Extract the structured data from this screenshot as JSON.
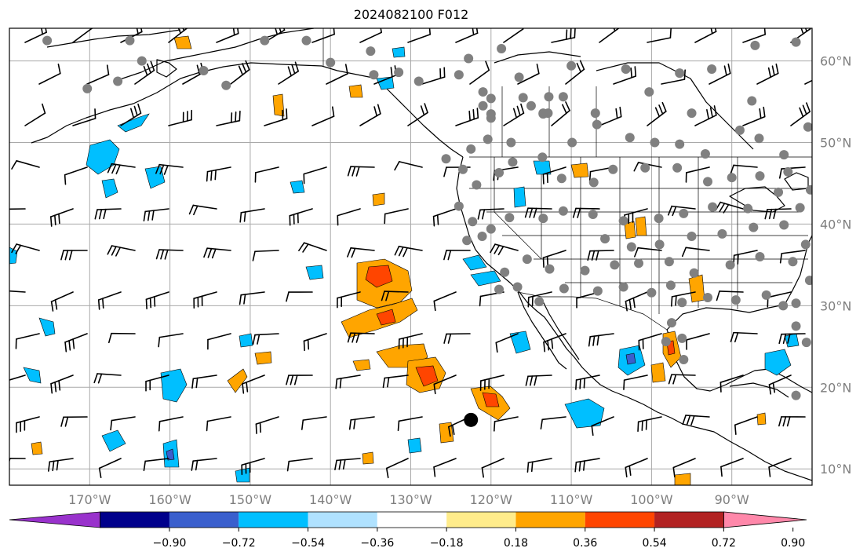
{
  "title": "2024082100 F012",
  "map": {
    "projection": "PlateCarree",
    "lon_range": [
      -180,
      -80
    ],
    "lat_range": [
      8,
      64
    ],
    "grid": true,
    "lat_ticks": [
      {
        "lat": 60,
        "label": "60°N"
      },
      {
        "lat": 50,
        "label": "50°N"
      },
      {
        "lat": 40,
        "label": "40°N"
      },
      {
        "lat": 30,
        "label": "30°N"
      },
      {
        "lat": 20,
        "label": "20°N"
      },
      {
        "lat": 10,
        "label": "10°N"
      }
    ],
    "lon_ticks": [
      {
        "lon": -170,
        "label": "170°W"
      },
      {
        "lon": -160,
        "label": "160°W"
      },
      {
        "lon": -150,
        "label": "150°W"
      },
      {
        "lon": -140,
        "label": "140°W"
      },
      {
        "lon": -130,
        "label": "130°W"
      },
      {
        "lon": -120,
        "label": "120°W"
      },
      {
        "lon": -110,
        "label": "110°W"
      },
      {
        "lon": -100,
        "label": "100°W"
      },
      {
        "lon": -90,
        "label": "90°W"
      }
    ],
    "station_marker": {
      "lon": -122.5,
      "lat": 16,
      "color": "#000000"
    },
    "observation_points_color": "#808080",
    "observation_points": [
      [
        -175.3,
        62.5
      ],
      [
        -165,
        62.5
      ],
      [
        -163.5,
        60
      ],
      [
        -166.5,
        57.5
      ],
      [
        -170.3,
        56.6
      ],
      [
        -155.8,
        58.8
      ],
      [
        -153,
        57
      ],
      [
        -148.2,
        62.5
      ],
      [
        -143,
        62.5
      ],
      [
        -140,
        59.8
      ],
      [
        -135,
        61.2
      ],
      [
        -131.5,
        58.6
      ],
      [
        -129,
        57.5
      ],
      [
        -124,
        58.3
      ],
      [
        -122.8,
        60.3
      ],
      [
        -120,
        55.4
      ],
      [
        -120,
        53.5
      ],
      [
        -115,
        54.5
      ],
      [
        -112.9,
        53.6
      ],
      [
        -113.5,
        53.6
      ],
      [
        -111,
        55.6
      ],
      [
        -116.5,
        58
      ],
      [
        -112.8,
        55.6
      ],
      [
        -110,
        59.4
      ],
      [
        -107,
        53.6
      ],
      [
        -103.2,
        59
      ],
      [
        -100.3,
        56.2
      ],
      [
        -96.5,
        58.5
      ],
      [
        -95,
        53.6
      ],
      [
        -92.5,
        59
      ],
      [
        -87.5,
        55.1
      ],
      [
        -87.1,
        61.9
      ],
      [
        -82,
        62.3
      ],
      [
        -80.5,
        51.9
      ],
      [
        -83.5,
        48.5
      ],
      [
        -86.6,
        50.5
      ],
      [
        -89,
        51.5
      ],
      [
        -93.3,
        48.6
      ],
      [
        -96.5,
        49.8
      ],
      [
        -99.6,
        50
      ],
      [
        -102.7,
        50.6
      ],
      [
        -106.8,
        52.2
      ],
      [
        -109.9,
        50
      ],
      [
        -113.5,
        53.5
      ],
      [
        -117.5,
        50
      ],
      [
        -120.4,
        50.4
      ],
      [
        -122.5,
        49.2
      ],
      [
        -125.6,
        48
      ],
      [
        -123.5,
        46.7
      ],
      [
        -121.8,
        44.8
      ],
      [
        -119,
        46.3
      ],
      [
        -117.3,
        47.6
      ],
      [
        -113.6,
        48.2
      ],
      [
        -111.2,
        45.6
      ],
      [
        -107.2,
        45.1
      ],
      [
        -104.8,
        46.7
      ],
      [
        -100.8,
        46.9
      ],
      [
        -96.8,
        46.9
      ],
      [
        -93,
        45.2
      ],
      [
        -90,
        45.7
      ],
      [
        -86.5,
        45.9
      ],
      [
        -83,
        46.4
      ],
      [
        -80.2,
        44.2
      ],
      [
        -124,
        42.2
      ],
      [
        -122.3,
        40.3
      ],
      [
        -120,
        39.4
      ],
      [
        -117.7,
        40.8
      ],
      [
        -113.5,
        40.7
      ],
      [
        -111,
        41.6
      ],
      [
        -107.3,
        41.2
      ],
      [
        -103.5,
        40.4
      ],
      [
        -99.1,
        40.7
      ],
      [
        -96,
        41.3
      ],
      [
        -92.4,
        42.1
      ],
      [
        -88,
        41.9
      ],
      [
        -84.2,
        43.9
      ],
      [
        -81.5,
        42
      ],
      [
        -123,
        38
      ],
      [
        -121.1,
        38.5
      ],
      [
        -118.3,
        34.1
      ],
      [
        -115.5,
        35.7
      ],
      [
        -112.7,
        34.5
      ],
      [
        -108.3,
        34.3
      ],
      [
        -104.6,
        35
      ],
      [
        -101.6,
        35.2
      ],
      [
        -97.8,
        35.4
      ],
      [
        -94.7,
        34
      ],
      [
        -90.2,
        35
      ],
      [
        -86.5,
        36
      ],
      [
        -82.4,
        35.4
      ],
      [
        -80.8,
        37.5
      ],
      [
        -83.5,
        39.9
      ],
      [
        -87.3,
        39.6
      ],
      [
        -91.2,
        38.8
      ],
      [
        -95,
        38.5
      ],
      [
        -99,
        37.5
      ],
      [
        -102.5,
        37.2
      ],
      [
        -105.8,
        38.2
      ],
      [
        -119,
        32
      ],
      [
        -116.7,
        32.3
      ],
      [
        -114,
        30.5
      ],
      [
        -110.9,
        32.1
      ],
      [
        -106.7,
        31.8
      ],
      [
        -103.5,
        32.3
      ],
      [
        -100,
        31.6
      ],
      [
        -97.6,
        32.5
      ],
      [
        -96.2,
        30.4
      ],
      [
        -93,
        31
      ],
      [
        -89.5,
        30.7
      ],
      [
        -85.7,
        31.3
      ],
      [
        -82,
        30.3
      ],
      [
        -80.3,
        33.1
      ],
      [
        -83.6,
        30
      ],
      [
        -82,
        27.5
      ],
      [
        -80.7,
        25.5
      ],
      [
        -97.5,
        27.9
      ],
      [
        -96.2,
        26
      ],
      [
        -96,
        23.4
      ],
      [
        -98.2,
        25.6
      ],
      [
        -82,
        19
      ],
      [
        -120,
        53
      ],
      [
        -134.6,
        58.3
      ],
      [
        -121,
        56.2
      ],
      [
        -118.7,
        61.5
      ],
      [
        -121,
        54.5
      ],
      [
        -116,
        55.5
      ]
    ]
  },
  "colorbar": {
    "levels": [
      -0.9,
      -0.72,
      -0.54,
      -0.36,
      -0.18,
      0.18,
      0.36,
      0.54,
      0.72,
      0.9
    ],
    "labels": [
      "−0.90",
      "−0.72",
      "−0.54",
      "−0.36",
      "−0.18",
      "0.18",
      "0.36",
      "0.54",
      "0.72",
      "0.90"
    ],
    "colors": [
      "#9932cc",
      "#00008b",
      "#3a5fcd",
      "#00bfff",
      "#b0e2ff",
      "#ffffff",
      "#ffec8b",
      "#ffa500",
      "#ff4500",
      "#b22222",
      "#ff88aa"
    ],
    "extend": "both"
  }
}
